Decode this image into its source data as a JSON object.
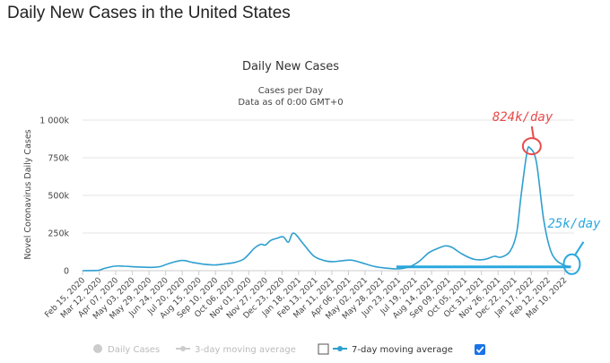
{
  "page": {
    "title": "Daily New Cases in the United States"
  },
  "chart_data": {
    "type": "line",
    "title": "Daily New Cases",
    "subtitle_lines": [
      "Cases per Day",
      "Data as of 0:00 GMT+0"
    ],
    "ylabel": "Novel Coronavirus Daily Cases",
    "xlabel": "",
    "ylim": [
      0,
      1000000
    ],
    "yticks": [
      {
        "value": 0,
        "label": "0"
      },
      {
        "value": 250000,
        "label": "250k"
      },
      {
        "value": 500000,
        "label": "500k"
      },
      {
        "value": 750000,
        "label": "750k"
      },
      {
        "value": 1000000,
        "label": "1 000k"
      }
    ],
    "xlim": [
      "2020-02-15",
      "2022-03-25"
    ],
    "xticks": [
      "Feb 15, 2020",
      "Mar 12, 2020",
      "Apr 07, 2020",
      "May 03, 2020",
      "May 29, 2020",
      "Jun 24, 2020",
      "Jul 20, 2020",
      "Aug 15, 2020",
      "Sep 10, 2020",
      "Oct 06, 2020",
      "Nov 01, 2020",
      "Nov 27, 2020",
      "Dec 23, 2020",
      "Jan 18, 2021",
      "Feb 13, 2021",
      "Mar 11, 2021",
      "Apr 06, 2021",
      "May 02, 2021",
      "May 28, 2021",
      "Jun 23, 2021",
      "Jul 19, 2021",
      "Aug 14, 2021",
      "Sep 09, 2021",
      "Oct 05, 2021",
      "Oct 31, 2021",
      "Nov 26, 2021",
      "Dec 22, 2021",
      "Jan 17, 2022",
      "Feb 12, 2022",
      "Mar 10, 2022"
    ],
    "grid": true,
    "series": [
      {
        "name": "7-day moving average",
        "color": "#2f9fcf",
        "x": [
          "2020-02-15",
          "2020-03-10",
          "2020-03-20",
          "2020-04-05",
          "2020-04-20",
          "2020-05-10",
          "2020-06-01",
          "2020-06-15",
          "2020-07-01",
          "2020-07-20",
          "2020-08-05",
          "2020-08-25",
          "2020-09-10",
          "2020-09-25",
          "2020-10-10",
          "2020-10-25",
          "2020-11-10",
          "2020-11-20",
          "2020-11-27",
          "2020-12-05",
          "2020-12-15",
          "2020-12-25",
          "2021-01-02",
          "2021-01-10",
          "2021-01-25",
          "2021-02-10",
          "2021-02-25",
          "2021-03-11",
          "2021-03-25",
          "2021-04-10",
          "2021-04-25",
          "2021-05-10",
          "2021-05-28",
          "2021-06-23",
          "2021-07-10",
          "2021-07-25",
          "2021-08-10",
          "2021-08-25",
          "2021-09-05",
          "2021-09-15",
          "2021-10-01",
          "2021-10-20",
          "2021-11-05",
          "2021-11-20",
          "2021-12-01",
          "2021-12-15",
          "2021-12-25",
          "2022-01-01",
          "2022-01-10",
          "2022-01-15",
          "2022-01-25",
          "2022-02-05",
          "2022-02-15",
          "2022-02-25",
          "2022-03-10",
          "2022-03-20"
        ],
        "values": [
          0,
          2000,
          15000,
          30000,
          30000,
          25000,
          22000,
          27000,
          50000,
          68000,
          55000,
          42000,
          38000,
          45000,
          55000,
          80000,
          150000,
          175000,
          170000,
          200000,
          215000,
          225000,
          190000,
          250000,
          180000,
          100000,
          70000,
          60000,
          65000,
          70000,
          55000,
          35000,
          20000,
          12000,
          25000,
          60000,
          120000,
          150000,
          165000,
          155000,
          110000,
          75000,
          75000,
          95000,
          90000,
          130000,
          250000,
          500000,
          780000,
          815000,
          720000,
          350000,
          150000,
          70000,
          35000,
          25000
        ]
      }
    ],
    "legend": {
      "placement": "bottom",
      "items": [
        {
          "label": "Daily Cases",
          "enabled": false
        },
        {
          "label": "3-day moving average",
          "enabled": false
        },
        {
          "label": "7-day moving average",
          "enabled": true
        }
      ]
    },
    "annotations": [
      {
        "text": "824k/day",
        "color": "#e84a4a"
      },
      {
        "text": "25k/day",
        "color": "#29a8df"
      }
    ]
  }
}
